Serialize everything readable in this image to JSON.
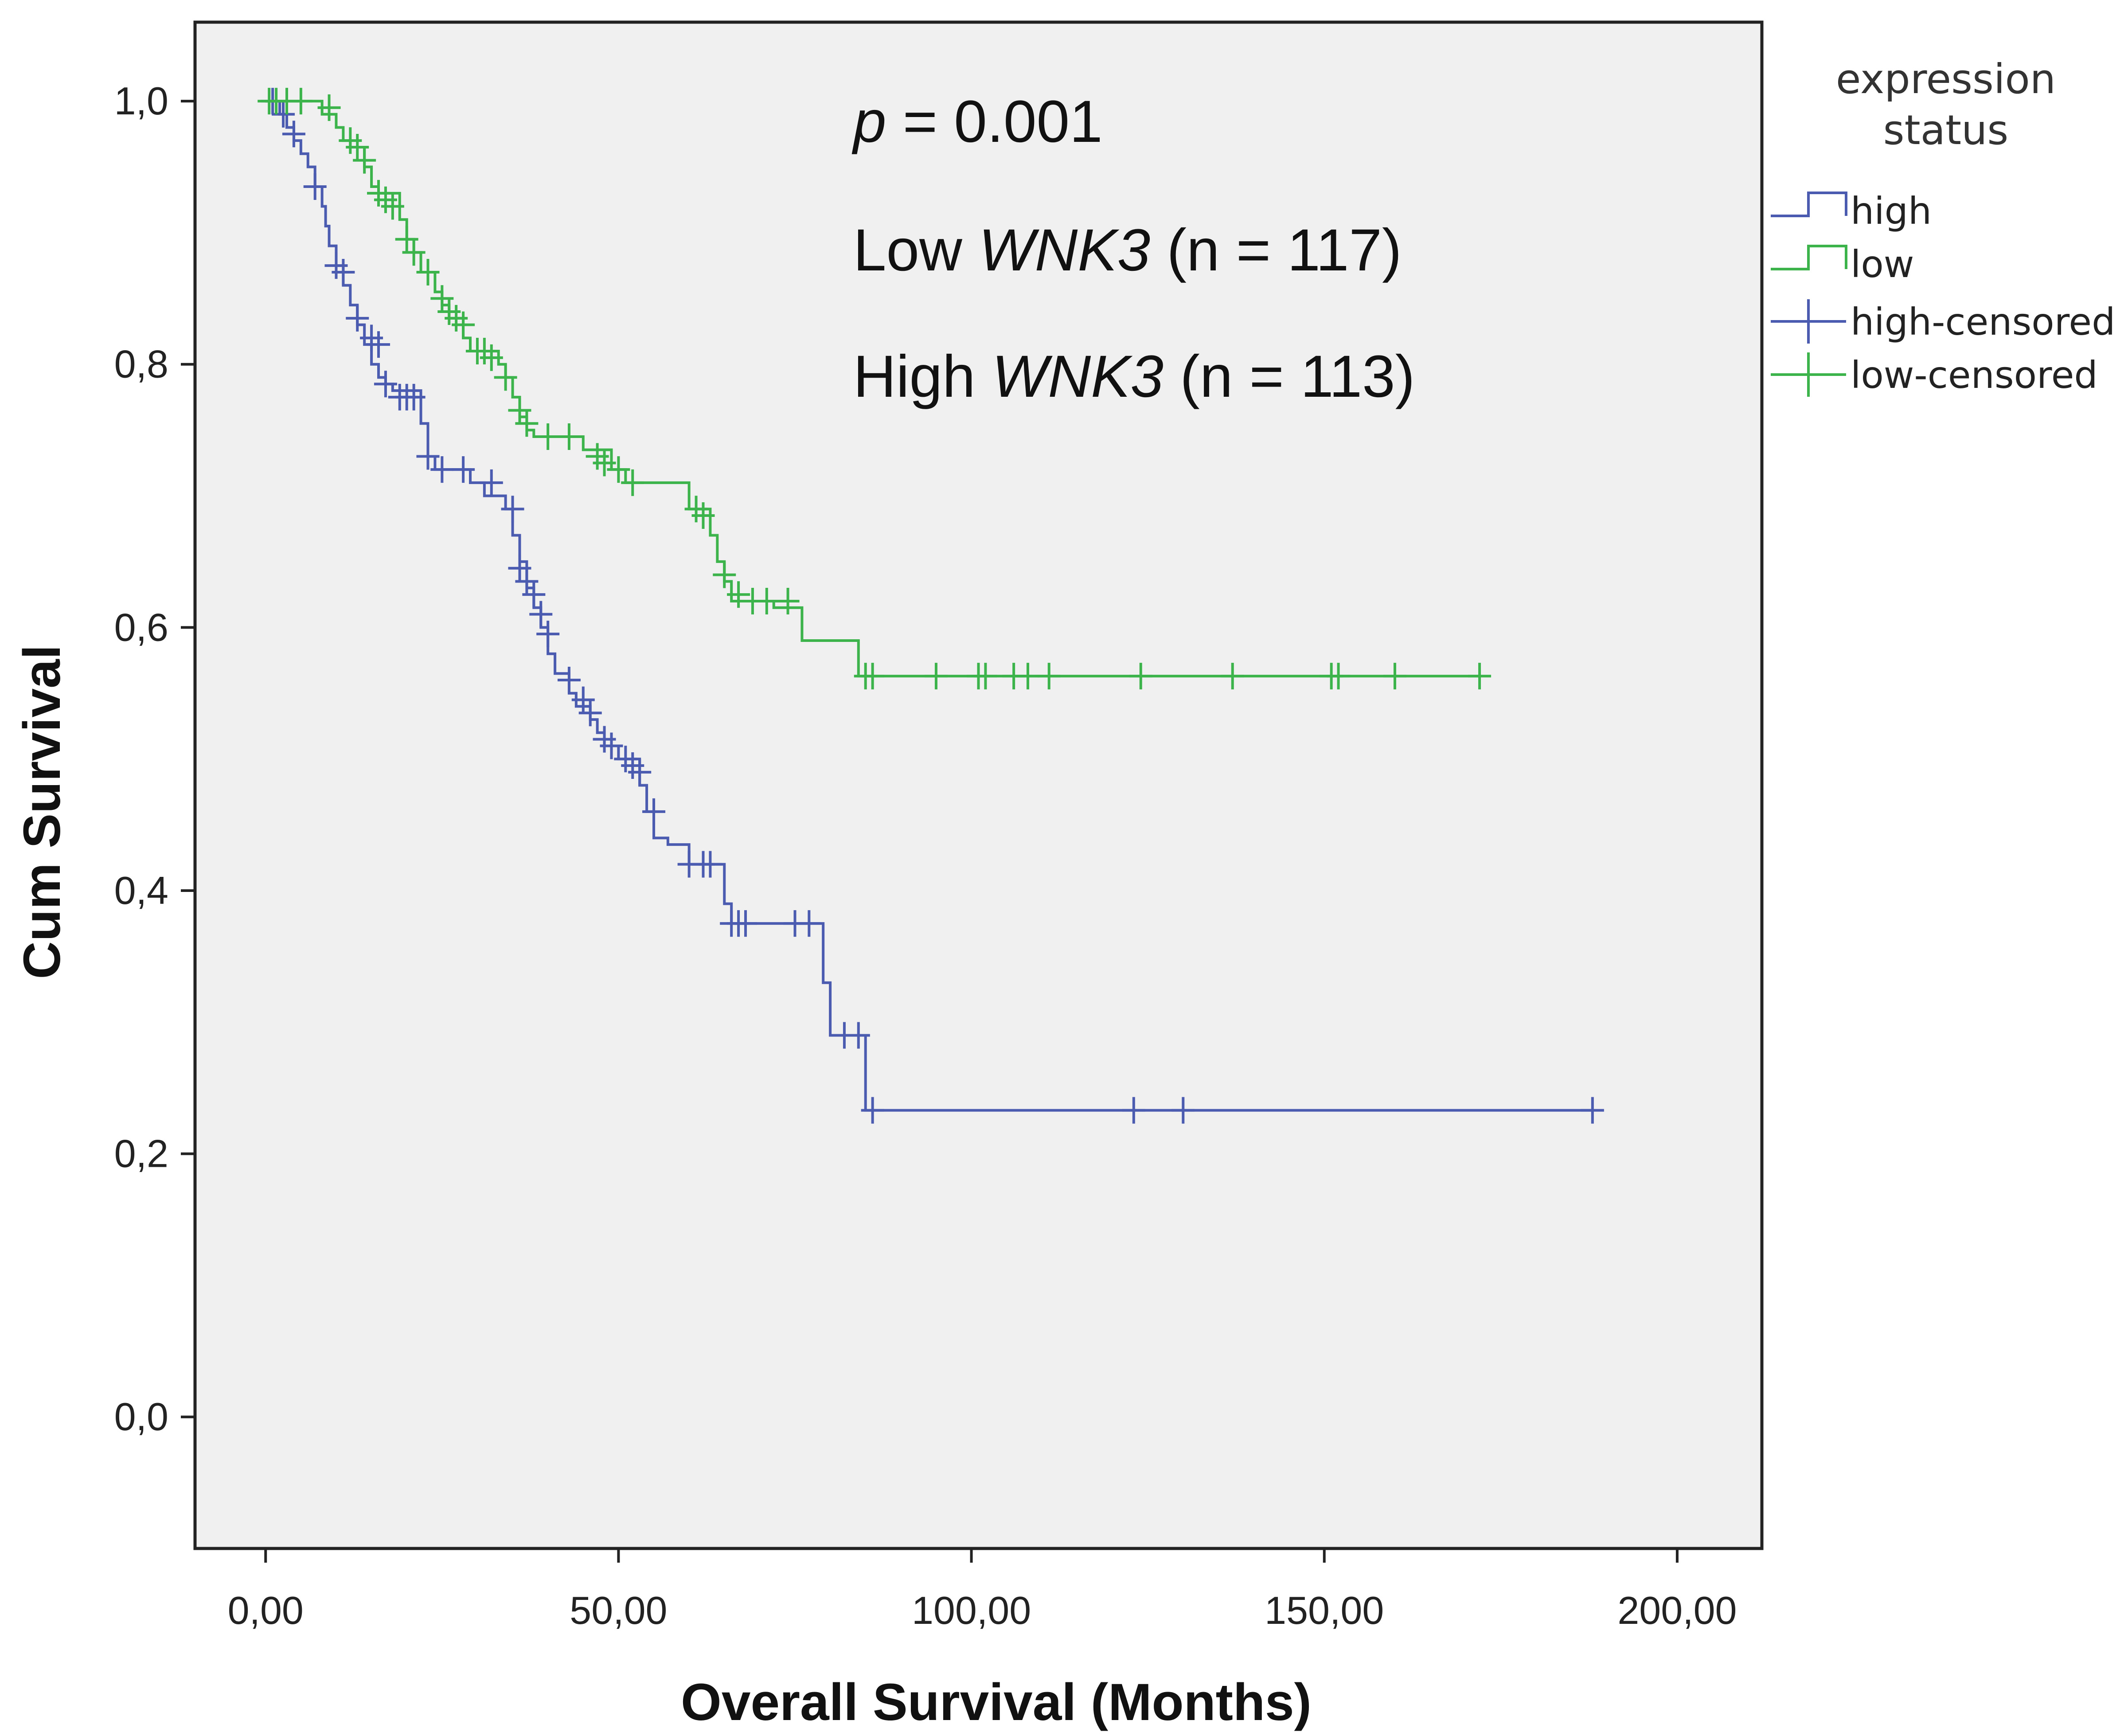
{
  "chart_data": {
    "type": "line",
    "subtype": "kaplan-meier",
    "xlabel": "Overall Survival (Months)",
    "ylabel": "Cum Survival",
    "xlim": [
      -10,
      212
    ],
    "ylim": [
      -0.1,
      1.06
    ],
    "x_ticks": [
      "0,00",
      "50,00",
      "100,00",
      "150,00",
      "200,00"
    ],
    "x_tick_values": [
      0,
      50,
      100,
      150,
      200
    ],
    "y_ticks": [
      "0,0",
      "0,2",
      "0,4",
      "0,6",
      "0,8",
      "1,0"
    ],
    "y_tick_values": [
      0,
      0.2,
      0.4,
      0.6,
      0.8,
      1.0
    ],
    "grid": false,
    "background_color": "#f0f0f0",
    "annotations": {
      "p_symbol": "p",
      "p_rest": " = 0.001",
      "low_prefix": "Low ",
      "low_gene": "WNK3",
      "low_suffix": " (n = 117)",
      "high_prefix": "High ",
      "high_gene": "WNK3",
      "high_suffix": " (n = 113)"
    },
    "legend": {
      "title_line1": "expression",
      "title_line2": "status",
      "placement": "right",
      "entries": [
        "high",
        "low",
        "high-censored",
        "low-censored"
      ]
    },
    "series": [
      {
        "name": "high",
        "color": "#4b5bb0",
        "steps": [
          [
            0,
            1.0
          ],
          [
            2,
            0.99
          ],
          [
            3,
            0.98
          ],
          [
            4,
            0.97
          ],
          [
            5,
            0.96
          ],
          [
            6,
            0.95
          ],
          [
            7,
            0.935
          ],
          [
            8,
            0.92
          ],
          [
            8.5,
            0.905
          ],
          [
            9,
            0.89
          ],
          [
            10,
            0.875
          ],
          [
            11,
            0.86
          ],
          [
            12,
            0.845
          ],
          [
            13,
            0.83
          ],
          [
            14,
            0.815
          ],
          [
            15,
            0.8
          ],
          [
            16,
            0.79
          ],
          [
            17,
            0.785
          ],
          [
            18,
            0.78
          ],
          [
            22,
            0.755
          ],
          [
            23,
            0.73
          ],
          [
            24,
            0.72
          ],
          [
            29,
            0.71
          ],
          [
            31,
            0.7
          ],
          [
            34,
            0.69
          ],
          [
            35,
            0.67
          ],
          [
            36,
            0.65
          ],
          [
            37,
            0.63
          ],
          [
            38,
            0.615
          ],
          [
            39,
            0.6
          ],
          [
            40,
            0.58
          ],
          [
            41,
            0.565
          ],
          [
            43,
            0.55
          ],
          [
            44,
            0.54
          ],
          [
            46,
            0.53
          ],
          [
            47,
            0.52
          ],
          [
            48,
            0.51
          ],
          [
            50,
            0.5
          ],
          [
            53,
            0.48
          ],
          [
            54,
            0.46
          ],
          [
            55,
            0.44
          ],
          [
            57,
            0.435
          ],
          [
            60,
            0.42
          ],
          [
            65,
            0.39
          ],
          [
            66,
            0.375
          ],
          [
            79,
            0.33
          ],
          [
            80,
            0.29
          ],
          [
            85,
            0.233
          ],
          [
            188,
            0.233
          ]
        ],
        "censored": [
          [
            1,
            1.0
          ],
          [
            2.5,
            0.99
          ],
          [
            4,
            0.975
          ],
          [
            7,
            0.935
          ],
          [
            10,
            0.875
          ],
          [
            11,
            0.87
          ],
          [
            13,
            0.835
          ],
          [
            15,
            0.82
          ],
          [
            16,
            0.815
          ],
          [
            17,
            0.785
          ],
          [
            19,
            0.775
          ],
          [
            20,
            0.775
          ],
          [
            21,
            0.775
          ],
          [
            23,
            0.73
          ],
          [
            25,
            0.72
          ],
          [
            28,
            0.72
          ],
          [
            32,
            0.71
          ],
          [
            35,
            0.69
          ],
          [
            36,
            0.645
          ],
          [
            37,
            0.635
          ],
          [
            38,
            0.625
          ],
          [
            39,
            0.61
          ],
          [
            40,
            0.595
          ],
          [
            43,
            0.56
          ],
          [
            45,
            0.545
          ],
          [
            46,
            0.535
          ],
          [
            48,
            0.515
          ],
          [
            49,
            0.51
          ],
          [
            51,
            0.5
          ],
          [
            52,
            0.495
          ],
          [
            53,
            0.49
          ],
          [
            55,
            0.46
          ],
          [
            60,
            0.42
          ],
          [
            62,
            0.42
          ],
          [
            63,
            0.42
          ],
          [
            66,
            0.375
          ],
          [
            67,
            0.375
          ],
          [
            68,
            0.375
          ],
          [
            75,
            0.375
          ],
          [
            77,
            0.375
          ],
          [
            82,
            0.29
          ],
          [
            84,
            0.29
          ],
          [
            86,
            0.233
          ],
          [
            123,
            0.233
          ],
          [
            130,
            0.233
          ],
          [
            188,
            0.233
          ]
        ]
      },
      {
        "name": "low",
        "color": "#3cb44b",
        "steps": [
          [
            0,
            1.0
          ],
          [
            8,
            0.99
          ],
          [
            10,
            0.98
          ],
          [
            11,
            0.97
          ],
          [
            12,
            0.965
          ],
          [
            14,
            0.95
          ],
          [
            15,
            0.935
          ],
          [
            16,
            0.93
          ],
          [
            19,
            0.91
          ],
          [
            20,
            0.895
          ],
          [
            21,
            0.885
          ],
          [
            22,
            0.87
          ],
          [
            24,
            0.855
          ],
          [
            25,
            0.845
          ],
          [
            26,
            0.835
          ],
          [
            28,
            0.82
          ],
          [
            29,
            0.81
          ],
          [
            33,
            0.8
          ],
          [
            34,
            0.79
          ],
          [
            35,
            0.775
          ],
          [
            36,
            0.76
          ],
          [
            37,
            0.75
          ],
          [
            38,
            0.745
          ],
          [
            45,
            0.735
          ],
          [
            49,
            0.72
          ],
          [
            51,
            0.71
          ],
          [
            60,
            0.69
          ],
          [
            63,
            0.67
          ],
          [
            64,
            0.65
          ],
          [
            65,
            0.635
          ],
          [
            66,
            0.62
          ],
          [
            72,
            0.615
          ],
          [
            76,
            0.59
          ],
          [
            84,
            0.563
          ],
          [
            172,
            0.563
          ]
        ],
        "censored": [
          [
            0.5,
            1.0
          ],
          [
            1.5,
            1.0
          ],
          [
            3,
            1.0
          ],
          [
            5,
            1.0
          ],
          [
            9,
            0.995
          ],
          [
            12,
            0.97
          ],
          [
            13,
            0.965
          ],
          [
            14,
            0.955
          ],
          [
            16,
            0.93
          ],
          [
            17,
            0.925
          ],
          [
            18,
            0.92
          ],
          [
            20,
            0.895
          ],
          [
            21,
            0.885
          ],
          [
            23,
            0.87
          ],
          [
            25,
            0.85
          ],
          [
            26,
            0.84
          ],
          [
            27,
            0.835
          ],
          [
            28,
            0.83
          ],
          [
            30,
            0.81
          ],
          [
            31,
            0.81
          ],
          [
            32,
            0.805
          ],
          [
            34,
            0.79
          ],
          [
            36,
            0.765
          ],
          [
            37,
            0.755
          ],
          [
            40,
            0.745
          ],
          [
            43,
            0.745
          ],
          [
            47,
            0.73
          ],
          [
            48,
            0.725
          ],
          [
            50,
            0.72
          ],
          [
            52,
            0.71
          ],
          [
            61,
            0.69
          ],
          [
            62,
            0.685
          ],
          [
            65,
            0.64
          ],
          [
            67,
            0.625
          ],
          [
            69,
            0.62
          ],
          [
            71,
            0.62
          ],
          [
            74,
            0.62
          ],
          [
            85,
            0.563
          ],
          [
            86,
            0.563
          ],
          [
            95,
            0.563
          ],
          [
            101,
            0.563
          ],
          [
            102,
            0.563
          ],
          [
            106,
            0.563
          ],
          [
            108,
            0.563
          ],
          [
            111,
            0.563
          ],
          [
            124,
            0.563
          ],
          [
            137,
            0.563
          ],
          [
            151,
            0.563
          ],
          [
            152,
            0.563
          ],
          [
            160,
            0.563
          ],
          [
            172,
            0.563
          ]
        ]
      }
    ]
  }
}
